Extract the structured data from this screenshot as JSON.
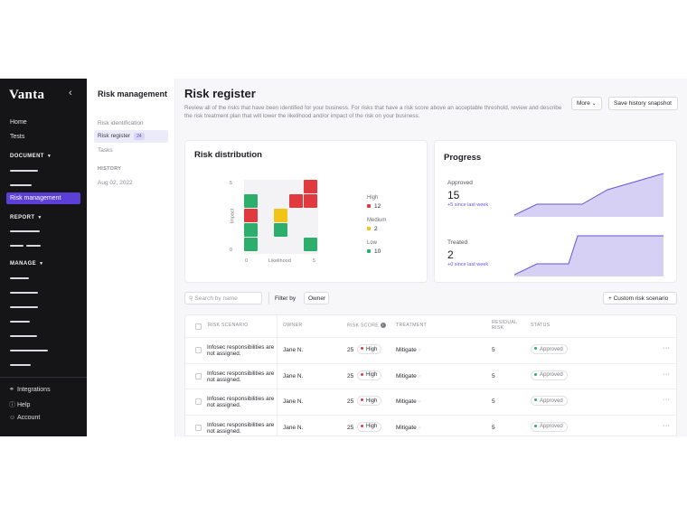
{
  "sidebar": {
    "logo": "Vanta",
    "collapse_icon": "chevron-left-icon",
    "links": {
      "home": "Home",
      "tests": "Tests"
    },
    "sections": {
      "document": "DOCUMENT",
      "report": "REPORT",
      "manage": "MANAGE"
    },
    "active_item": "Risk management",
    "footer": {
      "integrations": "Integrations",
      "help": "Help",
      "account": "Account"
    }
  },
  "subnav": {
    "title": "Risk management",
    "items": [
      "Risk identification",
      "Risk register",
      "Tasks"
    ],
    "active_count": "24",
    "history_label": "HISTORY",
    "history_date": "Aug 02, 2022"
  },
  "header": {
    "title": "Risk register",
    "description": "Review all of the risks that have been identified for your business. For risks that have a risk score above an acceptable threshold, review and describe the risk treatment plan that will lower the likelihood and/or impact of the risk on your business.",
    "more_button": "More",
    "snapshot_button": "Save history snapshot"
  },
  "distribution": {
    "title": "Risk distribution",
    "y_label": "Impact",
    "x_label": "Likelihood",
    "y_ticks": [
      "5",
      "0"
    ],
    "x_ticks": [
      "0",
      "5"
    ],
    "legend": [
      {
        "label": "High",
        "value": "12",
        "color": "#e03a3e"
      },
      {
        "label": "Medium",
        "value": "2",
        "color": "#f2c418"
      },
      {
        "label": "Low",
        "value": "10",
        "color": "#2eae6d"
      }
    ]
  },
  "progress": {
    "title": "Progress",
    "approved_label": "Approved",
    "approved_value": "15",
    "approved_delta": "+5 since last week",
    "treated_label": "Treated",
    "treated_value": "2",
    "treated_delta": "+0 since last week",
    "accent": "#6a52d9"
  },
  "toolbar": {
    "search_placeholder": "Search by name",
    "filter_label": "Filter by",
    "owner_chip": "Owner",
    "add_button": "Custom risk scenario"
  },
  "table": {
    "headers": {
      "scenario": "RISK SCENARIO",
      "owner": "OWNER",
      "score": "RISK SCORE",
      "treatment": "TREATMENT",
      "residual": "RESIDUAL RISK",
      "status": "STATUS"
    },
    "rows": [
      {
        "scenario": "Infosec responsibilities are not assigned.",
        "owner": "Jane N.",
        "score": "25",
        "level": "High",
        "treatment": "Mitigate",
        "residual": "5",
        "status": "Approved"
      },
      {
        "scenario": "Infosec responsibilities are not assigned.",
        "owner": "Jane N.",
        "score": "25",
        "level": "High",
        "treatment": "Mitigate",
        "residual": "5",
        "status": "Approved"
      },
      {
        "scenario": "Infosec responsibilities are not assigned.",
        "owner": "Jane N.",
        "score": "25",
        "level": "High",
        "treatment": "Mitigate",
        "residual": "5",
        "status": "Approved"
      },
      {
        "scenario": "Infosec responsibilities are not assigned.",
        "owner": "Jane N.",
        "score": "25",
        "level": "High",
        "treatment": "Mitigate",
        "residual": "5",
        "status": "Approved"
      }
    ]
  }
}
